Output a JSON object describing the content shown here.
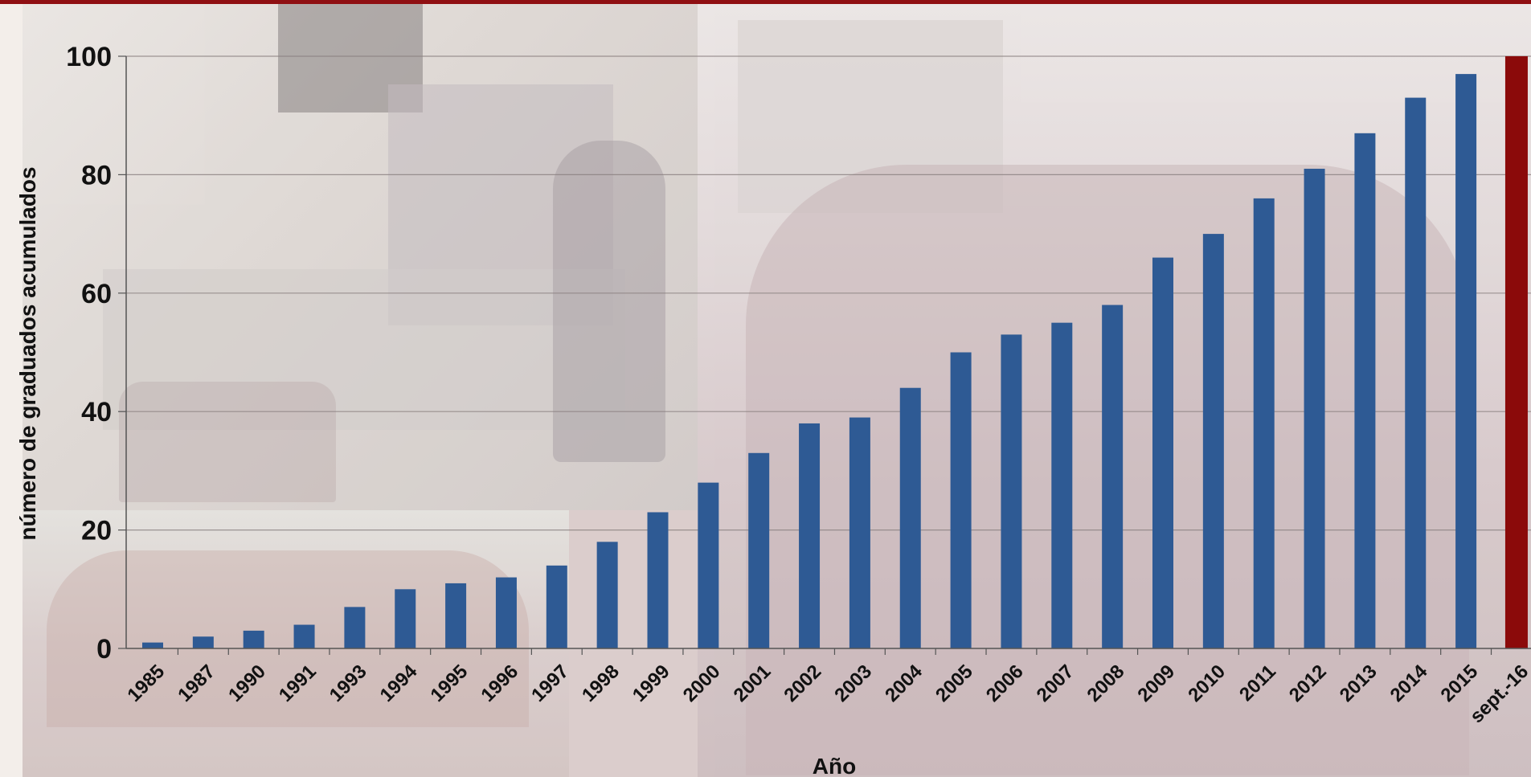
{
  "chart_data": {
    "type": "bar",
    "xlabel": "Año",
    "ylabel": "número de graduados acumulados",
    "ylim": [
      0,
      100
    ],
    "yticks": [
      "0",
      "20",
      "40",
      "60",
      "80",
      "100"
    ],
    "grid": true,
    "bar_color": "#2e5a94",
    "highlight_color": "#8b0a0a",
    "categories": [
      "1985",
      "1987",
      "1990",
      "1991",
      "1993",
      "1994",
      "1995",
      "1996",
      "1997",
      "1998",
      "1999",
      "2000",
      "2001",
      "2002",
      "2003",
      "2004",
      "2005",
      "2006",
      "2007",
      "2008",
      "2009",
      "2010",
      "2011",
      "2012",
      "2013",
      "2014",
      "2015",
      "sept.-16"
    ],
    "values": [
      1,
      2,
      3,
      4,
      7,
      10,
      11,
      12,
      14,
      18,
      23,
      28,
      33,
      38,
      39,
      44,
      50,
      53,
      55,
      58,
      66,
      70,
      76,
      81,
      87,
      93,
      97,
      100
    ],
    "highlighted_category": "sept.-16"
  }
}
